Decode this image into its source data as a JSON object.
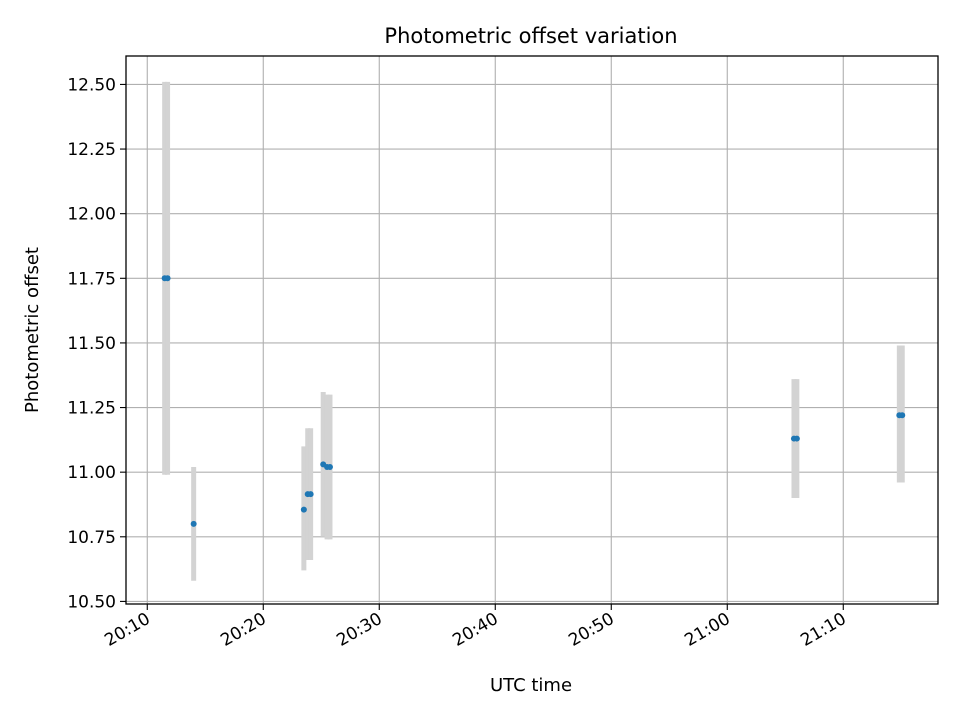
{
  "chart_data": {
    "type": "scatter",
    "title": "Photometric offset variation",
    "xlabel": "UTC time",
    "ylabel": "Photometric offset",
    "xlim": [
      "20:08:10",
      "21:18:10"
    ],
    "ylim": [
      10.49,
      12.61
    ],
    "grid": true,
    "x_ticks": [
      "20:10",
      "20:20",
      "20:30",
      "20:40",
      "20:50",
      "21:00",
      "21:10"
    ],
    "y_ticks": [
      "10.50",
      "10.75",
      "11.00",
      "11.25",
      "11.50",
      "11.75",
      "12.00",
      "12.25",
      "12.50"
    ],
    "colors": {
      "marker": "#1f77b4",
      "errorbar": "#d3d3d3",
      "grid": "#b0b0b0"
    },
    "points": [
      {
        "x": "20:11:30",
        "y": 11.75,
        "ylow": 10.99,
        "yhigh": 12.51
      },
      {
        "x": "20:11:45",
        "y": 11.75,
        "ylow": 10.99,
        "yhigh": 12.51
      },
      {
        "x": "20:14:00",
        "y": 10.8,
        "ylow": 10.58,
        "yhigh": 11.02
      },
      {
        "x": "20:23:30",
        "y": 10.855,
        "ylow": 10.62,
        "yhigh": 11.1
      },
      {
        "x": "20:23:50",
        "y": 10.915,
        "ylow": 10.66,
        "yhigh": 11.17
      },
      {
        "x": "20:24:05",
        "y": 10.915,
        "ylow": 10.66,
        "yhigh": 11.17
      },
      {
        "x": "20:25:10",
        "y": 11.03,
        "ylow": 10.75,
        "yhigh": 11.31
      },
      {
        "x": "20:25:30",
        "y": 11.02,
        "ylow": 10.74,
        "yhigh": 11.3
      },
      {
        "x": "20:25:45",
        "y": 11.02,
        "ylow": 10.74,
        "yhigh": 11.3
      },
      {
        "x": "21:05:45",
        "y": 11.13,
        "ylow": 10.9,
        "yhigh": 11.36
      },
      {
        "x": "21:06:00",
        "y": 11.13,
        "ylow": 10.9,
        "yhigh": 11.36
      },
      {
        "x": "21:14:50",
        "y": 11.22,
        "ylow": 10.96,
        "yhigh": 11.49
      },
      {
        "x": "21:15:05",
        "y": 11.22,
        "ylow": 10.96,
        "yhigh": 11.49
      }
    ]
  }
}
